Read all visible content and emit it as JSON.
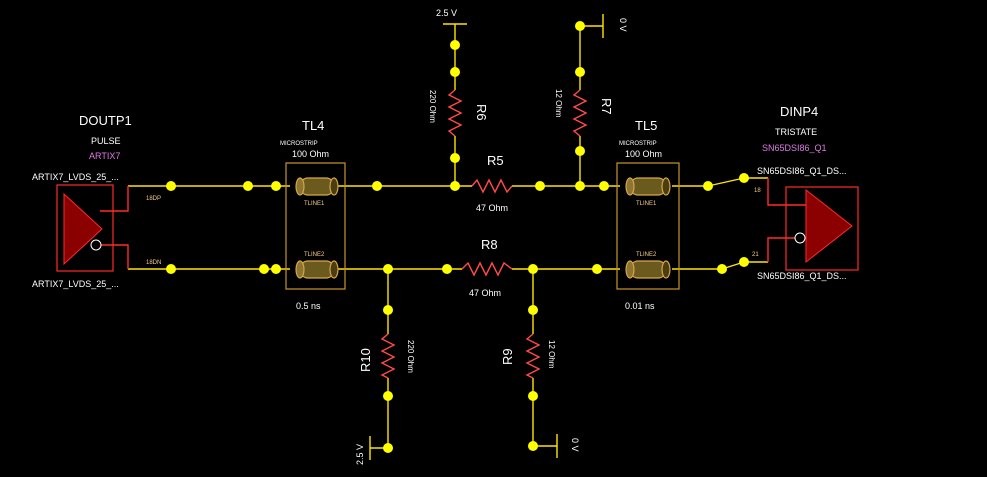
{
  "components": {
    "doutp1": {
      "ref": "DOUTP1",
      "type": "PULSE",
      "model": "ARTIX7",
      "net_top": "ARTIX7_LVDS_25_...",
      "net_bottom": "ARTIX7_LVDS_25_...",
      "pin_p": "18DP",
      "pin_n": "18DN"
    },
    "dinp4": {
      "ref": "DINP4",
      "type": "TRISTATE",
      "model": "SN65DSI86_Q1",
      "net_top": "SN65DSI86_Q1_DS...",
      "net_bottom": "SN65DSI86_Q1_DS...",
      "pin_top": "18",
      "pin_bottom": "21"
    },
    "tl4": {
      "ref": "TL4",
      "type": "MICROSTRIP",
      "impedance": "100 Ohm",
      "delay": "0.5 ns",
      "pin1": "TLINE1",
      "pin2": "TLINE2"
    },
    "tl5": {
      "ref": "TL5",
      "type": "MICROSTRIP",
      "impedance": "100 Ohm",
      "delay": "0.01 ns",
      "pin1": "TLINE1",
      "pin2": "TLINE2"
    },
    "r5": {
      "ref": "R5",
      "value": "47 Ohm"
    },
    "r8": {
      "ref": "R8",
      "value": "47 Ohm"
    },
    "r6": {
      "ref": "R6",
      "value": "220 Ohm",
      "supply": "2.5 V"
    },
    "r7": {
      "ref": "R7",
      "value": "12 Ohm",
      "supply": "0 V"
    },
    "r10": {
      "ref": "R10",
      "value": "220 Ohm",
      "supply": "2.5 V"
    },
    "r9": {
      "ref": "R9",
      "value": "12 Ohm",
      "supply": "0 V"
    }
  },
  "colors": {
    "background": "#000000",
    "wire": "#ffe600",
    "node": "#ffff00",
    "driver": "#8b0000",
    "outline": "#ff2a2a",
    "tline": "#d6a64a",
    "label": "#ffffff",
    "model": "#e07be6"
  }
}
